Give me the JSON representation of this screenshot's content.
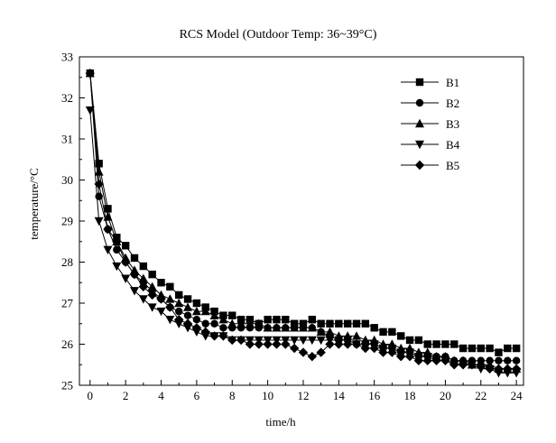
{
  "chart_data": {
    "type": "line",
    "title": "RCS Model (Outdoor Temp: 36~39°C)",
    "xlabel": "time/h",
    "ylabel": "temperature/°C",
    "xlim": [
      -0.6,
      24.4
    ],
    "ylim": [
      25,
      33
    ],
    "x_ticks": [
      0,
      2,
      4,
      6,
      8,
      10,
      12,
      14,
      16,
      18,
      20,
      22,
      24
    ],
    "y_ticks": [
      25,
      26,
      27,
      28,
      29,
      30,
      31,
      32,
      33
    ],
    "grid": false,
    "legend_position": "top-right",
    "x": [
      0,
      0.5,
      1,
      1.5,
      2,
      2.5,
      3,
      3.5,
      4,
      4.5,
      5,
      5.5,
      6,
      6.5,
      7,
      7.5,
      8,
      8.5,
      9,
      9.5,
      10,
      10.5,
      11,
      11.5,
      12,
      12.5,
      13,
      13.5,
      14,
      14.5,
      15,
      15.5,
      16,
      16.5,
      17,
      17.5,
      18,
      18.5,
      19,
      19.5,
      20,
      20.5,
      21,
      21.5,
      22,
      22.5,
      23,
      23.5,
      24
    ],
    "series": [
      {
        "name": "B1",
        "marker": "square",
        "values": [
          32.6,
          30.4,
          29.3,
          28.6,
          28.4,
          28.1,
          27.9,
          27.7,
          27.5,
          27.4,
          27.2,
          27.1,
          27.0,
          26.9,
          26.8,
          26.7,
          26.7,
          26.6,
          26.6,
          26.5,
          26.6,
          26.6,
          26.6,
          26.5,
          26.5,
          26.6,
          26.5,
          26.5,
          26.5,
          26.5,
          26.5,
          26.5,
          26.4,
          26.3,
          26.3,
          26.2,
          26.1,
          26.1,
          26.0,
          26.0,
          26.0,
          26.0,
          25.9,
          25.9,
          25.9,
          25.9,
          25.8,
          25.9,
          25.9
        ]
      },
      {
        "name": "B2",
        "marker": "circle",
        "values": [
          32.6,
          29.6,
          28.8,
          28.3,
          28.0,
          27.7,
          27.5,
          27.3,
          27.1,
          26.9,
          26.8,
          26.7,
          26.6,
          26.5,
          26.5,
          26.4,
          26.4,
          26.4,
          26.4,
          26.4,
          26.4,
          26.4,
          26.4,
          26.4,
          26.4,
          26.4,
          26.3,
          26.2,
          26.1,
          26.1,
          26.0,
          26.0,
          26.0,
          25.9,
          25.9,
          25.8,
          25.8,
          25.7,
          25.7,
          25.7,
          25.7,
          25.6,
          25.6,
          25.6,
          25.6,
          25.6,
          25.6,
          25.6,
          25.6
        ]
      },
      {
        "name": "B3",
        "marker": "triangle-up",
        "values": [
          32.6,
          30.2,
          29.1,
          28.5,
          28.1,
          27.8,
          27.6,
          27.4,
          27.2,
          27.1,
          27.0,
          26.9,
          26.8,
          26.8,
          26.7,
          26.6,
          26.5,
          26.5,
          26.5,
          26.5,
          26.4,
          26.4,
          26.4,
          26.4,
          26.4,
          26.4,
          26.3,
          26.3,
          26.2,
          26.2,
          26.2,
          26.1,
          26.1,
          26.0,
          26.0,
          25.9,
          25.9,
          25.8,
          25.8,
          25.7,
          25.7,
          25.6,
          25.6,
          25.5,
          25.5,
          25.5,
          25.4,
          25.4,
          25.4
        ]
      },
      {
        "name": "B4",
        "marker": "triangle-down",
        "values": [
          31.7,
          29.0,
          28.3,
          27.9,
          27.6,
          27.3,
          27.1,
          26.9,
          26.8,
          26.6,
          26.5,
          26.4,
          26.3,
          26.2,
          26.2,
          26.2,
          26.1,
          26.1,
          26.1,
          26.1,
          26.1,
          26.1,
          26.1,
          26.1,
          26.1,
          26.1,
          26.1,
          26.1,
          26.1,
          26.1,
          26.0,
          26.0,
          26.0,
          25.9,
          25.9,
          25.8,
          25.8,
          25.7,
          25.7,
          25.6,
          25.6,
          25.5,
          25.5,
          25.5,
          25.4,
          25.4,
          25.3,
          25.3,
          25.3
        ]
      },
      {
        "name": "B5",
        "marker": "diamond",
        "values": [
          32.6,
          29.9,
          28.8,
          28.5,
          28.0,
          27.7,
          27.4,
          27.2,
          27.1,
          26.9,
          26.6,
          26.5,
          26.4,
          26.3,
          26.2,
          26.2,
          26.1,
          26.1,
          26.0,
          26.0,
          26.0,
          26.0,
          26.0,
          25.9,
          25.8,
          25.7,
          25.8,
          26.0,
          26.0,
          26.0,
          26.0,
          25.9,
          25.9,
          25.8,
          25.8,
          25.7,
          25.7,
          25.6,
          25.6,
          25.6,
          25.6,
          25.5,
          25.5,
          25.5,
          25.5,
          25.4,
          25.4,
          25.4,
          25.4
        ]
      }
    ]
  }
}
